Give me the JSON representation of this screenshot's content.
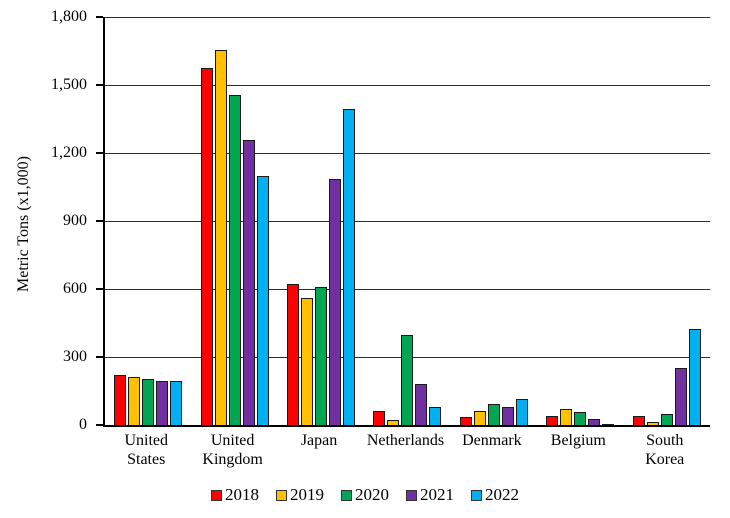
{
  "chart_data": {
    "type": "bar",
    "title": "",
    "xlabel": "",
    "ylabel": "Metric Tons (x1,000)",
    "ylim": [
      0,
      1800
    ],
    "grid": true,
    "legend_position": "bottom",
    "yticks": [
      {
        "value": 1800,
        "label": "1,800"
      },
      {
        "value": 1500,
        "label": "1,500"
      },
      {
        "value": 1200,
        "label": "1,200"
      },
      {
        "value": 900,
        "label": "900"
      },
      {
        "value": 600,
        "label": "600"
      },
      {
        "value": 300,
        "label": "300"
      },
      {
        "value": 0,
        "label": "0"
      }
    ],
    "categories": [
      "United States",
      "United Kingdom",
      "Japan",
      "Netherlands",
      "Denmark",
      "Belgium",
      "South Korea"
    ],
    "series": [
      {
        "name": "2018",
        "color": "#FE0000",
        "values": [
          220,
          1575,
          620,
          60,
          35,
          38,
          40
        ]
      },
      {
        "name": "2019",
        "color": "#FFC000",
        "values": [
          212,
          1655,
          560,
          20,
          60,
          70,
          12
        ]
      },
      {
        "name": "2020",
        "color": "#00A651",
        "values": [
          205,
          1455,
          610,
          398,
          92,
          56,
          48
        ]
      },
      {
        "name": "2021",
        "color": "#7030A0",
        "values": [
          196,
          1258,
          1085,
          180,
          78,
          28,
          253
        ]
      },
      {
        "name": "2022",
        "color": "#00B0F0",
        "values": [
          195,
          1100,
          1395,
          80,
          116,
          5,
          422
        ]
      }
    ]
  }
}
